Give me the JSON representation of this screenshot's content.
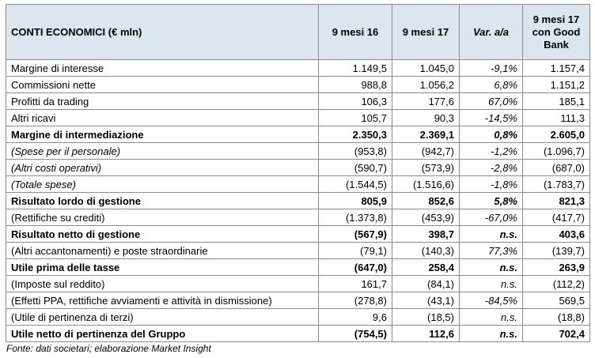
{
  "table": {
    "header": [
      "CONTI ECONOMICI (€ mln)",
      "9 mesi 16",
      "9 mesi 17",
      "Var. a/a",
      [
        "9 mesi 17",
        "con Good",
        "Bank"
      ]
    ],
    "rows": [
      [
        "Margine di interesse",
        "1.149,5",
        "1.045,0",
        "-9,1%",
        "1.157,4"
      ],
      [
        "Commissioni nette",
        "988,8",
        "1.056,2",
        "6,8%",
        "1.151,2"
      ],
      [
        "Profitti da trading",
        "106,3",
        "177,6",
        "67,0%",
        "185,1"
      ],
      [
        "Altri ricavi",
        "105,7",
        "90,3",
        "-14,5%",
        "111,3"
      ],
      [
        "Margine di intermediazione",
        "2.350,3",
        "2.369,1",
        "0,8%",
        "2.605,0"
      ],
      [
        "(Spese per il personale)",
        "(953,8)",
        "(942,7)",
        "-1,2%",
        "(1.096,7)"
      ],
      [
        "(Altri costi operativi)",
        "(590,7)",
        "(573,9)",
        "-2,8%",
        "(687,0)"
      ],
      [
        "(Totale spese)",
        "(1.544,5)",
        "(1.516,6)",
        "-1,8%",
        "(1.783,7)"
      ],
      [
        "Risultato lordo di gestione",
        "805,9",
        "852,6",
        "5,8%",
        "821,3"
      ],
      [
        "(Rettifiche su crediti)",
        "(1.373,8)",
        "(453,9)",
        "-67,0%",
        "(417,7)"
      ],
      [
        "Risultato netto di gestione",
        "(567,9)",
        "398,7",
        "n.s.",
        "403,6"
      ],
      [
        "(Altri accantonamenti) e poste straordinarie",
        "(79,1)",
        "(140,3)",
        "77,3%",
        "(139,7)"
      ],
      [
        "Utile prima delle tasse",
        "(647,0)",
        "258,4",
        "n.s.",
        "263,9"
      ],
      [
        "(Imposte sul reddito)",
        "161,7",
        "(84,1)",
        "n.s.",
        "(112,2)"
      ],
      [
        "(Effetti PPA, rettifiche avviamenti e attività in dismissione)",
        "(278,8)",
        "(43,1)",
        "-84,5%",
        "569,5"
      ],
      [
        "(Utile di pertinenza di terzi)",
        "9,6",
        "(18,5)",
        "n.s.",
        "(18,8)"
      ],
      [
        "Utile netto di pertinenza del Gruppo",
        "(754,5)",
        "112,6",
        "n.s.",
        "702,4"
      ]
    ]
  },
  "footnote": "Fonte: dati societari; elaborazione Market Insight"
}
